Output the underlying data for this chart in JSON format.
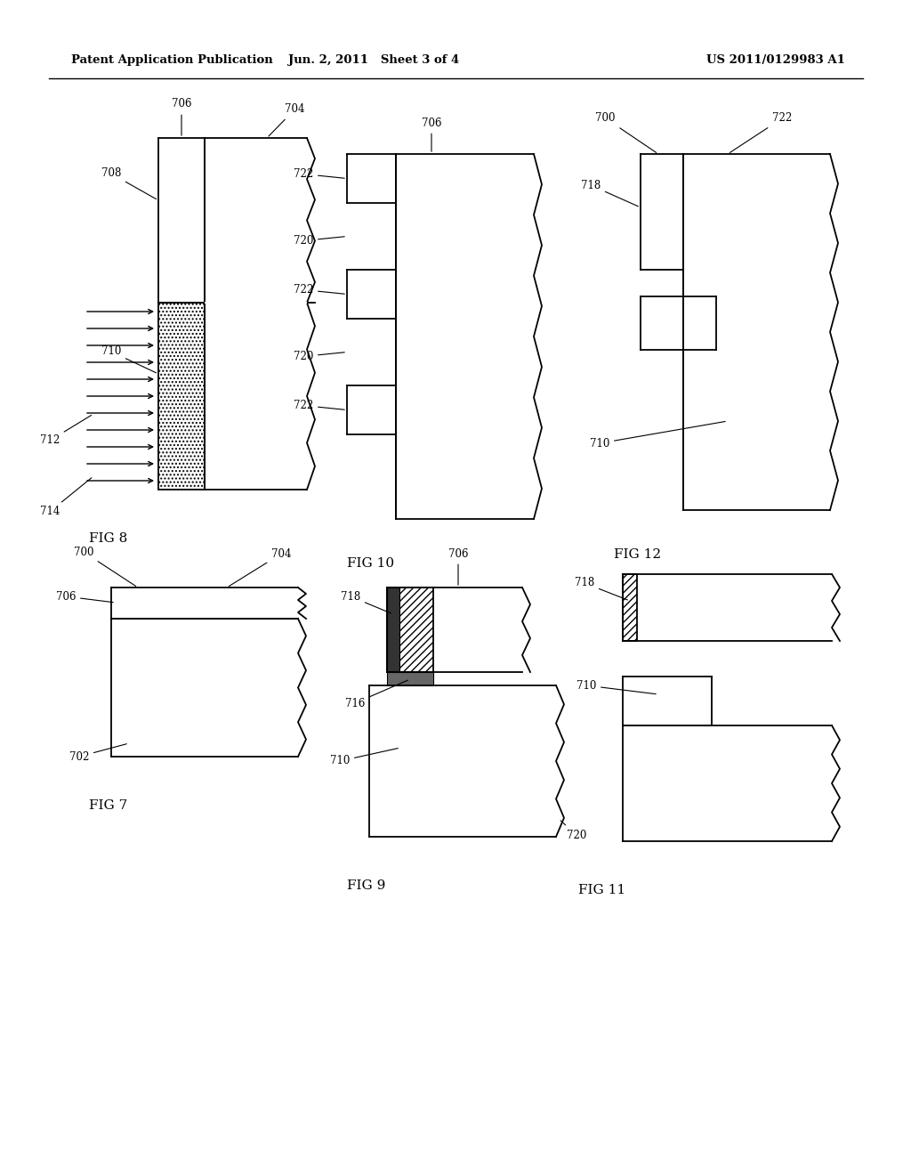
{
  "header_left": "Patent Application Publication",
  "header_center": "Jun. 2, 2011   Sheet 3 of 4",
  "header_right": "US 2011/0129983 A1",
  "bg_color": "#ffffff"
}
